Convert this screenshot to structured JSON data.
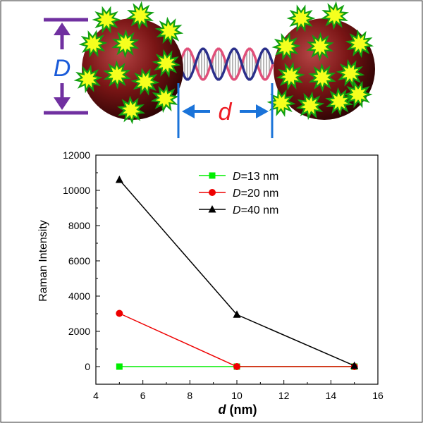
{
  "diagram": {
    "diameter_symbol": "D",
    "distance_symbol": "d"
  },
  "chart_data": {
    "type": "line",
    "xlabel_italic": "d",
    "xlabel_unit": " (nm)",
    "ylabel": "Raman Intensity",
    "xlim": [
      4,
      16
    ],
    "ylim": [
      -1000,
      12000
    ],
    "xticks": [
      4,
      6,
      8,
      10,
      12,
      14,
      16
    ],
    "yticks": [
      0,
      2000,
      4000,
      6000,
      8000,
      10000,
      12000
    ],
    "grid": false,
    "legend_position": "top-right",
    "x": [
      5,
      10,
      15
    ],
    "series": [
      {
        "name_italic": "D",
        "name_rest": "=13 nm",
        "color": "#00ee00",
        "marker": "square",
        "values": [
          0,
          0,
          0
        ]
      },
      {
        "name_italic": "D",
        "name_rest": "=20 nm",
        "color": "#ee0000",
        "marker": "circle",
        "values": [
          3020,
          0,
          0
        ]
      },
      {
        "name_italic": "D",
        "name_rest": "=40 nm",
        "color": "#000000",
        "marker": "triangle",
        "values": [
          10600,
          2950,
          50
        ]
      }
    ]
  }
}
